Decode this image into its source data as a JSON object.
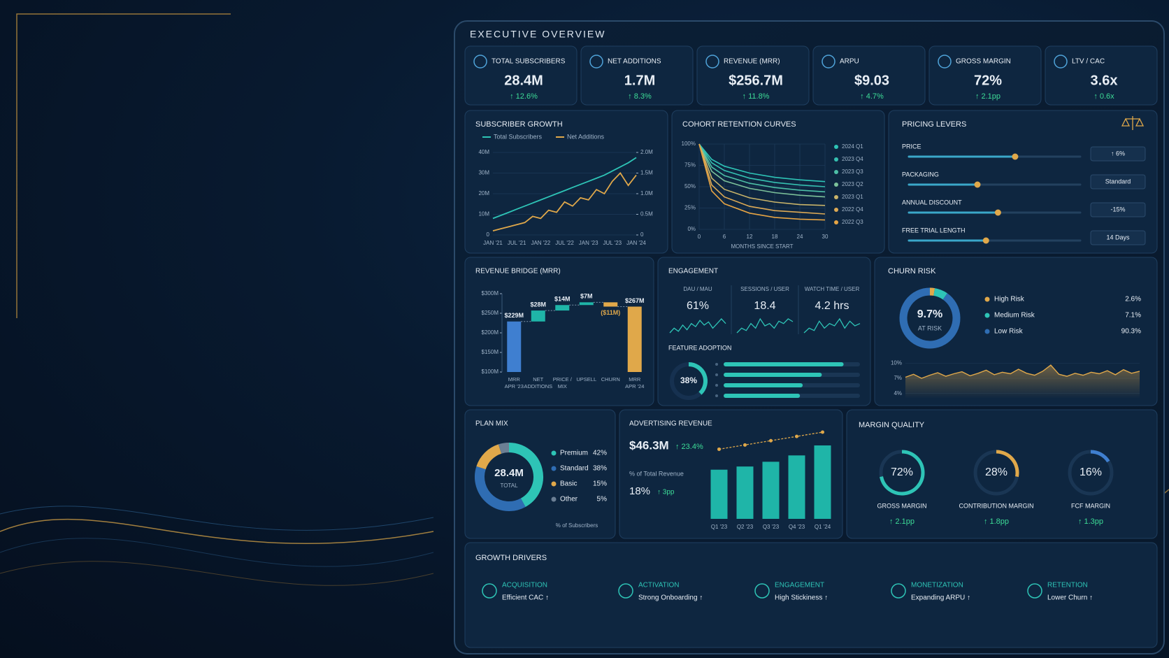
{
  "header": {
    "title": "EXECUTIVE OVERVIEW"
  },
  "kpis": [
    {
      "label": "TOTAL SUBSCRIBERS",
      "value": "28.4M",
      "change": "↑ 12.6%"
    },
    {
      "label": "NET ADDITIONS",
      "value": "1.7M",
      "change": "↑ 8.3%"
    },
    {
      "label": "REVENUE (MRR)",
      "value": "$256.7M",
      "change": "↑ 11.8%"
    },
    {
      "label": "ARPU",
      "value": "$9.03",
      "change": "↑ 4.7%"
    },
    {
      "label": "GROSS MARGIN",
      "value": "72%",
      "change": "↑ 2.1pp"
    },
    {
      "label": "LTV / CAC",
      "value": "3.6x",
      "change": "↑ 0.6x"
    }
  ],
  "subscriber_growth": {
    "type": "line",
    "title": "SUBSCRIBER GROWTH",
    "categories": [
      "JAN '21",
      null,
      null,
      "JUL '21",
      null,
      null,
      "JAN '22",
      null,
      null,
      "JUL '22",
      null,
      null,
      "JAN '23",
      null,
      null,
      "JUL '23",
      null,
      null,
      "JAN '24"
    ],
    "series": [
      {
        "name": "Total Subscribers",
        "color": "#2ec4b6",
        "values": [
          8,
          9.5,
          11,
          12.5,
          14,
          15.5,
          17,
          18.5,
          20,
          21.5,
          23,
          24.5,
          26,
          27.5,
          29,
          31,
          33,
          35,
          37.5
        ]
      },
      {
        "name": "Net Additions",
        "color": "#e0a84a",
        "axis": "y2",
        "values": [
          0.1,
          0.15,
          0.2,
          0.25,
          0.3,
          0.45,
          0.4,
          0.6,
          0.55,
          0.8,
          0.7,
          0.9,
          0.85,
          1.1,
          1.0,
          1.3,
          1.5,
          1.2,
          1.45
        ]
      }
    ],
    "ylim": [
      0,
      40
    ],
    "yticks": [
      0,
      {
        "value": 10,
        "label": "10M"
      },
      {
        "value": 20,
        "label": "20M"
      },
      {
        "value": 30,
        "label": "30M"
      },
      {
        "value": 40,
        "label": "40M"
      }
    ],
    "y2lim": [
      0,
      2
    ],
    "y2ticks": [
      0,
      {
        "value": 0.5,
        "label": "0.5M"
      },
      {
        "value": 1,
        "label": "1.0M"
      },
      {
        "value": 1.5,
        "label": "1.5M"
      },
      {
        "value": 2,
        "label": "2.0M"
      }
    ],
    "grid": true
  },
  "cohort_retention": {
    "type": "line",
    "title": "COHORT RETENTION CURVES",
    "x_label": "MONTHS SINCE START",
    "x": [
      0,
      3,
      6,
      12,
      18,
      24,
      30
    ],
    "xlim": [
      0,
      30
    ],
    "xticks": [
      0,
      6,
      12,
      18,
      24,
      30
    ],
    "ylim": [
      0,
      100
    ],
    "yticks": [
      {
        "value": 0,
        "label": "0%"
      },
      {
        "value": 25,
        "label": "25%"
      },
      {
        "value": 50,
        "label": "50%"
      },
      {
        "value": 75,
        "label": "75%"
      },
      {
        "value": 100,
        "label": "100%"
      }
    ],
    "grid": true,
    "series": [
      {
        "name": "2024 Q1",
        "color": "#2ec4b6",
        "values": [
          100,
          82,
          74,
          66,
          61,
          58,
          56
        ]
      },
      {
        "name": "2023 Q4",
        "color": "#35c0b0",
        "values": [
          100,
          78,
          69,
          60,
          55,
          52,
          50
        ]
      },
      {
        "name": "2023 Q3",
        "color": "#4dbfa6",
        "values": [
          100,
          73,
          63,
          54,
          49,
          46,
          44
        ]
      },
      {
        "name": "2023 Q2",
        "color": "#7cc19a",
        "values": [
          100,
          68,
          57,
          48,
          43,
          40,
          38
        ]
      },
      {
        "name": "2023 Q1",
        "color": "#c9b46a",
        "values": [
          100,
          60,
          47,
          37,
          32,
          29,
          28
        ]
      },
      {
        "name": "2022 Q4",
        "color": "#dca955",
        "values": [
          100,
          52,
          38,
          27,
          22,
          20,
          18
        ]
      },
      {
        "name": "2022 Q3",
        "color": "#e6a444",
        "values": [
          100,
          45,
          30,
          19,
          14,
          12,
          11
        ]
      }
    ]
  },
  "pricing_levers": {
    "title": "PRICING LEVERS",
    "levers": [
      {
        "label": "PRICE",
        "setting": "↑ 6%"
      },
      {
        "label": "PACKAGING",
        "setting": "Standard"
      },
      {
        "label": "ANNUAL DISCOUNT",
        "setting": "-15%"
      },
      {
        "label": "FREE TRIAL LENGTH",
        "setting": "14 Days"
      }
    ]
  },
  "revenue_bridge": {
    "type": "waterfall",
    "title": "REVENUE BRIDGE (MRR)",
    "categories": [
      [
        "MRR",
        "APR '23"
      ],
      [
        "NET",
        "ADDITIONS"
      ],
      [
        "PRICE /",
        "MIX"
      ],
      [
        "UPSELL"
      ],
      [
        "CHURN"
      ],
      [
        "MRR",
        "APR '24"
      ]
    ],
    "values": [
      229,
      28,
      14,
      7,
      -11,
      267
    ],
    "value_labels": [
      "$229M",
      "$28M",
      "$14M",
      "$7M",
      "($11M)",
      "$267M"
    ],
    "colors": [
      "#3f7fd0",
      "#1fb5a8",
      "#1fb5a8",
      "#1fb5a8",
      "#e0a84a",
      "#e0a84a"
    ],
    "ylim": [
      100,
      300
    ],
    "yticks": [
      {
        "value": 100,
        "label": "$100M"
      },
      {
        "value": 150,
        "label": "$150M"
      },
      {
        "value": 200,
        "label": "$200M"
      },
      {
        "value": 250,
        "label": "$250M"
      },
      {
        "value": 300,
        "label": "$300M"
      }
    ]
  },
  "engagement": {
    "title": "ENGAGEMENT",
    "metrics": [
      {
        "label": "DAU / MAU",
        "value": "61%",
        "trend": [
          55,
          58,
          56,
          60,
          57,
          61,
          59,
          63,
          60,
          62,
          58,
          61,
          64,
          61
        ]
      },
      {
        "label": "SESSIONS / USER",
        "value": "18.4",
        "trend": [
          16,
          17,
          16.5,
          18,
          17,
          19,
          17.5,
          18,
          17,
          18.5,
          18,
          19,
          18.4
        ]
      },
      {
        "label": "WATCH TIME / USER",
        "value": "4.2 hrs",
        "trend": [
          3.8,
          4.0,
          3.9,
          4.3,
          4.0,
          4.2,
          4.1,
          4.4,
          4.0,
          4.3,
          4.1,
          4.2
        ]
      }
    ],
    "feature_adoption": {
      "title": "FEATURE ADOPTION",
      "value": 38,
      "value_label": "38%",
      "bars": [
        88,
        72,
        58,
        56
      ]
    }
  },
  "churn_risk": {
    "title": "CHURN RISK",
    "center_value": "9.7%",
    "center_label": "AT RISK",
    "segments": [
      {
        "name": "High Risk",
        "color": "#e0a84a",
        "value": 2.6,
        "value_label": "2.6%"
      },
      {
        "name": "Medium Risk",
        "color": "#2ec4b6",
        "value": 7.1,
        "value_label": "7.1%"
      },
      {
        "name": "Low Risk",
        "color": "#2f6db3",
        "value": 90.3,
        "value_label": "90.3%"
      }
    ],
    "trend": {
      "ylim": [
        3,
        11
      ],
      "yticks": [
        {
          "value": 4,
          "label": "4%"
        },
        {
          "value": 7,
          "label": "7%"
        },
        {
          "value": 10,
          "label": "10%"
        }
      ],
      "color": "#e0a84a",
      "values": [
        7.2,
        7.8,
        7.0,
        7.6,
        8.1,
        7.4,
        7.9,
        8.3,
        7.5,
        8.0,
        8.6,
        7.7,
        8.2,
        7.9,
        8.8,
        8.0,
        7.6,
        8.4,
        9.6,
        7.8,
        7.4,
        8.0,
        7.6,
        8.2,
        7.9,
        8.5,
        7.7,
        8.7,
        8.0,
        8.4
      ]
    }
  },
  "plan_mix": {
    "title": "PLAN MIX",
    "center_value": "28.4M",
    "center_label": "TOTAL",
    "segments": [
      {
        "name": "Premium",
        "color": "#2ec4b6",
        "value": 42,
        "value_label": "42%"
      },
      {
        "name": "Standard",
        "color": "#2f6db3",
        "value": 38,
        "value_label": "38%"
      },
      {
        "name": "Basic",
        "color": "#e0a84a",
        "value": 15,
        "value_label": "15%"
      },
      {
        "name": "Other",
        "color": "#6b7f94",
        "value": 5,
        "value_label": "5%"
      }
    ],
    "footnote": "% of Subscribers"
  },
  "advertising_revenue": {
    "title": "ADVERTISING REVENUE",
    "value": "$46.3M",
    "change": "↑ 23.4%",
    "share_label": "% of Total Revenue",
    "share_value": "18%",
    "share_change": "↑ 3pp",
    "categories": [
      "Q1 '23",
      "Q2 '23",
      "Q3 '23",
      "Q4 '23",
      "Q1 '24"
    ],
    "values": [
      31,
      33,
      36,
      40,
      46.3
    ],
    "line_values": [
      14,
      15,
      16,
      17,
      18
    ],
    "color": "#1fb5a8",
    "line_color": "#e0a84a"
  },
  "margin_quality": {
    "title": "MARGIN QUALITY",
    "gauges": [
      {
        "name": "GROSS MARGIN",
        "value": 72,
        "value_label": "72%",
        "change": "↑ 2.1pp",
        "color": "#2ec4b6"
      },
      {
        "name": "CONTRIBUTION MARGIN",
        "value": 28,
        "value_label": "28%",
        "change": "↑ 1.8pp",
        "color": "#e0a84a"
      },
      {
        "name": "FCF MARGIN",
        "value": 16,
        "value_label": "16%",
        "change": "↑ 1.3pp",
        "color": "#3f7fd0"
      }
    ]
  },
  "growth_drivers": {
    "title": "GROWTH DRIVERS",
    "items": [
      {
        "label": "ACQUISITION",
        "detail": "Efficient CAC ↑"
      },
      {
        "label": "ACTIVATION",
        "detail": "Strong Onboarding ↑"
      },
      {
        "label": "ENGAGEMENT",
        "detail": "High Stickiness ↑"
      },
      {
        "label": "MONETIZATION",
        "detail": "Expanding ARPU ↑"
      },
      {
        "label": "RETENTION",
        "detail": "Lower Churn ↑"
      }
    ]
  }
}
